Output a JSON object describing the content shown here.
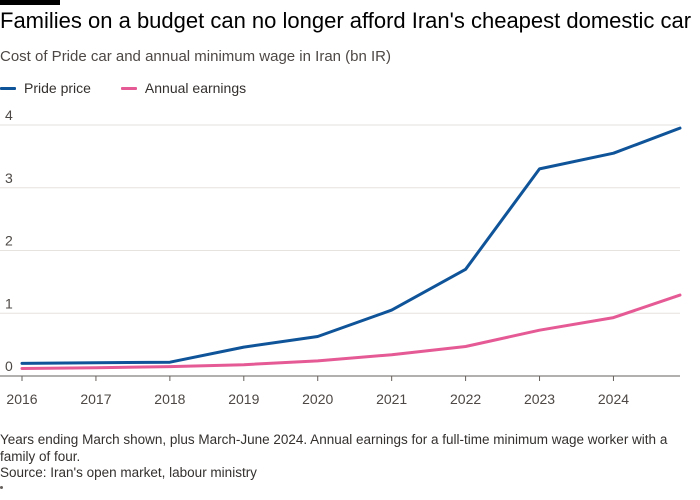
{
  "chart_data": {
    "type": "line",
    "title": "Families on a budget can no longer afford Iran's cheapest domestic car",
    "subtitle": "Cost of Pride car and annual minimum wage in Iran (bn IR)",
    "xlabel": "",
    "ylabel": "",
    "x": [
      2016,
      2017,
      2018,
      2019,
      2020,
      2021,
      2022,
      2023,
      2024,
      2024.9
    ],
    "x_ticks": [
      "2016",
      "2017",
      "2018",
      "2019",
      "2020",
      "2021",
      "2022",
      "2023",
      "2024"
    ],
    "y_ticks": [
      "0",
      "1",
      "2",
      "3",
      "4"
    ],
    "xlim": [
      2016,
      2024.9
    ],
    "ylim": [
      0,
      4
    ],
    "grid": true,
    "legend_position": "top-left",
    "series": [
      {
        "name": "Pride price",
        "color": "#0f5499",
        "values": [
          0.2,
          0.21,
          0.22,
          0.46,
          0.63,
          1.05,
          1.7,
          3.3,
          3.55,
          3.95
        ]
      },
      {
        "name": "Annual earnings",
        "color": "#e55a95",
        "values": [
          0.12,
          0.13,
          0.15,
          0.18,
          0.24,
          0.34,
          0.47,
          0.73,
          0.93,
          1.29
        ]
      }
    ]
  },
  "footnote": "Years ending March shown, plus March-June 2024. Annual earnings for a full-time minimum wage worker with a family of four.",
  "source": "Source: Iran's open market, labour ministry"
}
